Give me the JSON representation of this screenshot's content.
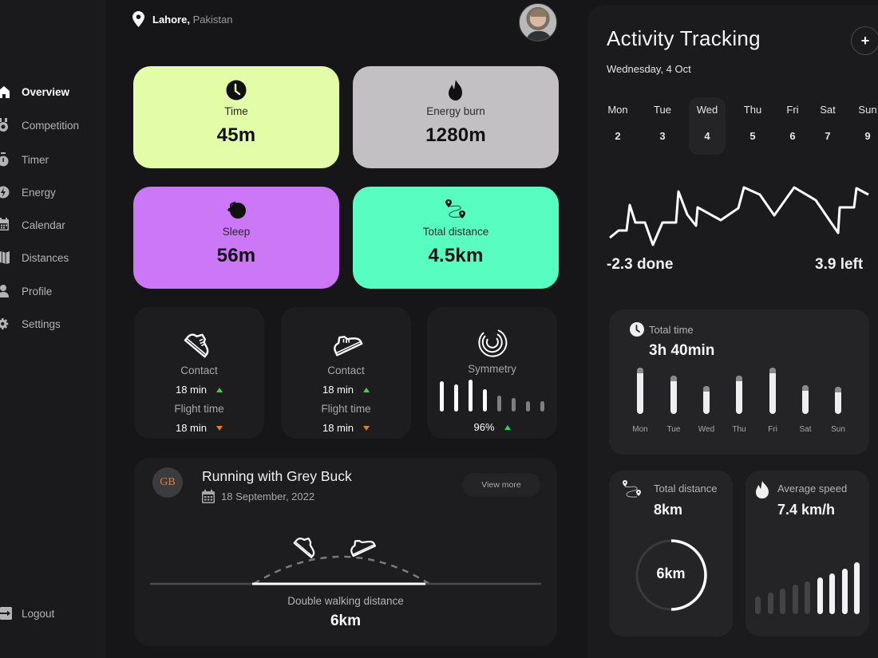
{
  "sidebar": {
    "items": [
      {
        "label": "Overview",
        "icon": "home-icon",
        "active": true
      },
      {
        "label": "Competition",
        "icon": "medal-icon",
        "active": false
      },
      {
        "label": "Timer",
        "icon": "stopwatch-icon",
        "active": false
      },
      {
        "label": "Energy",
        "icon": "lightning-icon",
        "active": false
      },
      {
        "label": "Calendar",
        "icon": "calendar-icon",
        "active": false
      },
      {
        "label": "Distances",
        "icon": "map-icon",
        "active": false
      },
      {
        "label": "Profile",
        "icon": "user-icon",
        "active": false
      },
      {
        "label": "Settings",
        "icon": "gear-icon",
        "active": false
      }
    ],
    "logout_label": "Logout"
  },
  "header": {
    "city": "Lahore,",
    "country": "Pakistan"
  },
  "stats": [
    {
      "title": "Time",
      "value": "45m",
      "icon": "clock-icon",
      "color": "#e3fca8"
    },
    {
      "title": "Energy burn",
      "value": "1280m",
      "icon": "flame-icon",
      "color": "#c2c0c3"
    },
    {
      "title": "Sleep",
      "value": "56m",
      "icon": "moon-music-icon",
      "color": "#cc77f6"
    },
    {
      "title": "Total distance",
      "value": "4.5km",
      "icon": "route-icon",
      "color": "#58fdc1"
    }
  ],
  "metrics": {
    "left_shoe": {
      "contact_label": "Contact",
      "contact_value": "18 min",
      "contact_trend": "up",
      "flight_label": "Flight time",
      "flight_value": "18 min",
      "flight_trend": "down"
    },
    "right_shoe": {
      "contact_label": "Contact",
      "contact_value": "18 min",
      "contact_trend": "up",
      "flight_label": "Flight time",
      "flight_value": "18 min",
      "flight_trend": "down"
    },
    "symmetry": {
      "label": "Symmetry",
      "value": "96%",
      "trend": "up",
      "bars": [
        38,
        34,
        40,
        28,
        20,
        17,
        13,
        13
      ]
    }
  },
  "run": {
    "badge": "GB",
    "title": "Running with Grey Buck",
    "date": "18 September, 2022",
    "view_more": "View more",
    "distance_label": "Double walking distance",
    "distance_value": "6km"
  },
  "activity": {
    "title": "Activity Tracking",
    "date": "Wednesday, 4 Oct",
    "add_label": "+",
    "week": [
      {
        "day": "Mon",
        "date": "2",
        "selected": false
      },
      {
        "day": "Tue",
        "date": "3",
        "selected": false
      },
      {
        "day": "Wed",
        "date": "4",
        "selected": true
      },
      {
        "day": "Thu",
        "date": "5",
        "selected": false
      },
      {
        "day": "Fri",
        "date": "6",
        "selected": false
      },
      {
        "day": "Sat",
        "date": "7",
        "selected": false
      },
      {
        "day": "Sun",
        "date": "9",
        "selected": false
      }
    ],
    "done_label": "-2.3 done",
    "left_label": "3.9 left",
    "total_time": {
      "label": "Total time",
      "value": "3h 40min",
      "days": [
        "Mon",
        "Tue",
        "Wed",
        "Thu",
        "Fri",
        "Sat",
        "Sun"
      ],
      "bars": [
        58,
        48,
        35,
        48,
        58,
        36,
        34
      ]
    },
    "total_distance": {
      "label": "Total distance",
      "value": "8km",
      "ring_value": "6km",
      "progress": 0.5
    },
    "average_speed": {
      "label": "Average speed",
      "value": "7.4 km/h",
      "bars": [
        22,
        27,
        32,
        37,
        41,
        46,
        51,
        57,
        65
      ],
      "active_from": 5
    }
  },
  "colors": {
    "up": "#2fd65a",
    "down": "#e27c2e",
    "background": "#161517"
  }
}
